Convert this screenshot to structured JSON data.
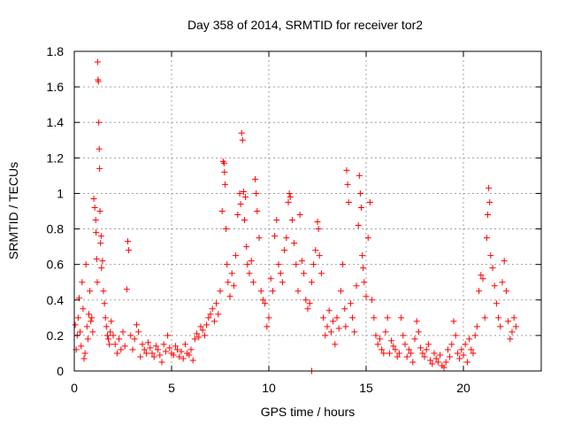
{
  "chart_data": {
    "type": "scatter",
    "title": "Day 358 of 2014, SRMTID for receiver tor2",
    "xlabel": "GPS time / hours",
    "ylabel": "SRMTID / TECUs",
    "xlim": [
      0,
      24
    ],
    "ylim": [
      0,
      1.8
    ],
    "x_ticks": [
      0,
      5,
      10,
      15,
      20
    ],
    "x_tick_labels": [
      "0",
      "5",
      "10",
      "15",
      "20"
    ],
    "y_ticks": [
      0,
      0.2,
      0.4,
      0.6,
      0.8,
      1.0,
      1.2,
      1.4,
      1.6,
      1.8
    ],
    "y_tick_labels": [
      "0",
      "0.2",
      "0.4",
      "0.6",
      "0.8",
      "1",
      "1.2",
      "1.4",
      "1.6",
      "1.8"
    ],
    "grid": true,
    "marker": "+",
    "color": "#ff0000",
    "series": [
      {
        "name": "tor2",
        "points": [
          [
            0.05,
            0.26
          ],
          [
            0.1,
            0.12
          ],
          [
            0.15,
            0.2
          ],
          [
            0.2,
            0.3
          ],
          [
            0.25,
            0.41
          ],
          [
            0.3,
            0.22
          ],
          [
            0.35,
            0.14
          ],
          [
            0.4,
            0.5
          ],
          [
            0.45,
            0.35
          ],
          [
            0.5,
            0.07
          ],
          [
            0.55,
            0.1
          ],
          [
            0.6,
            0.6
          ],
          [
            0.65,
            0.25
          ],
          [
            0.7,
            0.18
          ],
          [
            0.75,
            0.32
          ],
          [
            0.8,
            0.45
          ],
          [
            0.85,
            0.28
          ],
          [
            0.9,
            0.3
          ],
          [
            0.95,
            0.22
          ],
          [
            1.0,
            0.97
          ],
          [
            1.05,
            0.92
          ],
          [
            1.1,
            0.85
          ],
          [
            1.12,
            0.78
          ],
          [
            1.15,
            0.63
          ],
          [
            1.18,
            0.5
          ],
          [
            1.2,
            1.74
          ],
          [
            1.22,
            1.64
          ],
          [
            1.24,
            1.63
          ],
          [
            1.26,
            1.4
          ],
          [
            1.28,
            1.25
          ],
          [
            1.3,
            1.14
          ],
          [
            1.32,
            0.9
          ],
          [
            1.35,
            0.72
          ],
          [
            1.38,
            0.76
          ],
          [
            1.4,
            0.58
          ],
          [
            1.45,
            0.62
          ],
          [
            1.5,
            0.45
          ],
          [
            1.55,
            0.38
          ],
          [
            1.6,
            0.3
          ],
          [
            1.65,
            0.25
          ],
          [
            1.7,
            0.2
          ],
          [
            1.75,
            0.18
          ],
          [
            1.8,
            0.15
          ],
          [
            1.85,
            0.22
          ],
          [
            1.9,
            0.28
          ],
          [
            2.0,
            0.2
          ],
          [
            2.1,
            0.15
          ],
          [
            2.2,
            0.1
          ],
          [
            2.3,
            0.18
          ],
          [
            2.4,
            0.12
          ],
          [
            2.5,
            0.22
          ],
          [
            2.6,
            0.14
          ],
          [
            2.7,
            0.46
          ],
          [
            2.75,
            0.73
          ],
          [
            2.8,
            0.68
          ],
          [
            2.9,
            0.2
          ],
          [
            3.0,
            0.12
          ],
          [
            3.1,
            0.18
          ],
          [
            3.2,
            0.26
          ],
          [
            3.3,
            0.22
          ],
          [
            3.4,
            0.08
          ],
          [
            3.5,
            0.15
          ],
          [
            3.6,
            0.12
          ],
          [
            3.7,
            0.1
          ],
          [
            3.8,
            0.16
          ],
          [
            3.9,
            0.13
          ],
          [
            4.0,
            0.1
          ],
          [
            4.1,
            0.08
          ],
          [
            4.2,
            0.14
          ],
          [
            4.3,
            0.12
          ],
          [
            4.4,
            0.09
          ],
          [
            4.5,
            0.05
          ],
          [
            4.6,
            0.15
          ],
          [
            4.7,
            0.11
          ],
          [
            4.8,
            0.2
          ],
          [
            4.9,
            0.13
          ],
          [
            5.0,
            0.1
          ],
          [
            5.1,
            0.09
          ],
          [
            5.2,
            0.14
          ],
          [
            5.3,
            0.12
          ],
          [
            5.4,
            0.08
          ],
          [
            5.5,
            0.11
          ],
          [
            5.6,
            0.07
          ],
          [
            5.7,
            0.15
          ],
          [
            5.8,
            0.1
          ],
          [
            5.9,
            0.09
          ],
          [
            6.0,
            0.12
          ],
          [
            6.1,
            0.06
          ],
          [
            6.2,
            0.18
          ],
          [
            6.3,
            0.21
          ],
          [
            6.4,
            0.19
          ],
          [
            6.5,
            0.25
          ],
          [
            6.6,
            0.23
          ],
          [
            6.7,
            0.2
          ],
          [
            6.8,
            0.26
          ],
          [
            6.9,
            0.3
          ],
          [
            7.0,
            0.32
          ],
          [
            7.1,
            0.35
          ],
          [
            7.2,
            0.28
          ],
          [
            7.3,
            0.38
          ],
          [
            7.4,
            0.32
          ],
          [
            7.5,
            0.45
          ],
          [
            7.6,
            0.9
          ],
          [
            7.65,
            1.18
          ],
          [
            7.7,
            1.17
          ],
          [
            7.72,
            1.12
          ],
          [
            7.75,
            1.05
          ],
          [
            7.8,
            0.8
          ],
          [
            7.85,
            0.6
          ],
          [
            7.9,
            0.5
          ],
          [
            8.0,
            0.42
          ],
          [
            8.1,
            0.55
          ],
          [
            8.2,
            0.48
          ],
          [
            8.3,
            0.65
          ],
          [
            8.4,
            0.88
          ],
          [
            8.5,
            1.0
          ],
          [
            8.55,
            0.94
          ],
          [
            8.6,
            1.34
          ],
          [
            8.65,
            1.3
          ],
          [
            8.7,
            1.01
          ],
          [
            8.75,
            0.85
          ],
          [
            8.8,
            0.98
          ],
          [
            8.85,
            0.7
          ],
          [
            8.9,
            0.6
          ],
          [
            9.0,
            0.55
          ],
          [
            9.1,
            0.62
          ],
          [
            9.2,
            0.5
          ],
          [
            9.3,
            1.08
          ],
          [
            9.35,
            1.0
          ],
          [
            9.4,
            0.9
          ],
          [
            9.5,
            0.75
          ],
          [
            9.6,
            0.45
          ],
          [
            9.7,
            0.4
          ],
          [
            9.8,
            0.38
          ],
          [
            9.9,
            0.25
          ],
          [
            10.0,
            0.3
          ],
          [
            10.1,
            0.52
          ],
          [
            10.2,
            0.45
          ],
          [
            10.3,
            0.76
          ],
          [
            10.4,
            0.85
          ],
          [
            10.5,
            0.6
          ],
          [
            10.6,
            0.55
          ],
          [
            10.7,
            0.5
          ],
          [
            10.8,
            0.68
          ],
          [
            10.9,
            0.75
          ],
          [
            11.0,
            0.95
          ],
          [
            11.05,
            1.0
          ],
          [
            11.1,
            0.98
          ],
          [
            11.2,
            0.85
          ],
          [
            11.3,
            0.72
          ],
          [
            11.4,
            0.6
          ],
          [
            11.5,
            0.45
          ],
          [
            11.6,
            0.88
          ],
          [
            11.7,
            0.62
          ],
          [
            11.8,
            0.55
          ],
          [
            11.9,
            0.4
          ],
          [
            12.0,
            0.35
          ],
          [
            12.1,
            0.38
          ],
          [
            12.2,
            0.5
          ],
          [
            12.3,
            0.6
          ],
          [
            12.4,
            0.68
          ],
          [
            12.5,
            0.84
          ],
          [
            12.55,
            0.8
          ],
          [
            12.6,
            0.65
          ],
          [
            12.7,
            0.55
          ],
          [
            12.8,
            0.3
          ],
          [
            12.9,
            0.2
          ],
          [
            13.0,
            0.25
          ],
          [
            13.1,
            0.34
          ],
          [
            13.2,
            0.22
          ],
          [
            13.3,
            0.28
          ],
          [
            13.4,
            0.15
          ],
          [
            13.5,
            0.3
          ],
          [
            13.6,
            0.24
          ],
          [
            13.7,
            0.45
          ],
          [
            13.8,
            0.6
          ],
          [
            13.9,
            0.35
          ],
          [
            13.95,
            0.25
          ],
          [
            14.0,
            1.13
          ],
          [
            14.05,
            1.05
          ],
          [
            14.1,
            0.95
          ],
          [
            14.2,
            0.38
          ],
          [
            14.3,
            0.3
          ],
          [
            14.4,
            0.22
          ],
          [
            14.5,
            0.48
          ],
          [
            14.6,
            0.82
          ],
          [
            14.65,
            1.1
          ],
          [
            14.7,
            1.0
          ],
          [
            14.75,
            0.92
          ],
          [
            14.8,
            0.65
          ],
          [
            14.85,
            0.58
          ],
          [
            14.9,
            0.5
          ],
          [
            15.0,
            0.42
          ],
          [
            15.1,
            0.75
          ],
          [
            15.2,
            0.95
          ],
          [
            15.3,
            0.4
          ],
          [
            15.4,
            0.3
          ],
          [
            15.5,
            0.2
          ],
          [
            15.6,
            0.15
          ],
          [
            15.7,
            0.18
          ],
          [
            15.8,
            0.12
          ],
          [
            15.9,
            0.1
          ],
          [
            16.0,
            0.22
          ],
          [
            16.1,
            0.3
          ],
          [
            16.2,
            0.1
          ],
          [
            16.3,
            0.17
          ],
          [
            16.4,
            0.14
          ],
          [
            16.5,
            0.12
          ],
          [
            16.6,
            0.08
          ],
          [
            16.7,
            0.1
          ],
          [
            16.8,
            0.3
          ],
          [
            16.9,
            0.2
          ],
          [
            17.0,
            0.15
          ],
          [
            17.1,
            0.08
          ],
          [
            17.2,
            0.12
          ],
          [
            17.3,
            0.1
          ],
          [
            17.4,
            0.05
          ],
          [
            17.5,
            0.18
          ],
          [
            17.6,
            0.28
          ],
          [
            17.7,
            0.22
          ],
          [
            17.8,
            0.13
          ],
          [
            17.9,
            0.1
          ],
          [
            18.0,
            0.08
          ],
          [
            18.1,
            0.12
          ],
          [
            18.2,
            0.15
          ],
          [
            18.3,
            0.06
          ],
          [
            18.4,
            0.04
          ],
          [
            18.5,
            0.1
          ],
          [
            18.6,
            0.07
          ],
          [
            18.7,
            0.05
          ],
          [
            18.8,
            0.09
          ],
          [
            18.9,
            0.03
          ],
          [
            19.0,
            0.02
          ],
          [
            19.1,
            0.05
          ],
          [
            19.2,
            0.12
          ],
          [
            19.3,
            0.08
          ],
          [
            19.4,
            0.15
          ],
          [
            19.5,
            0.28
          ],
          [
            19.6,
            0.2
          ],
          [
            19.7,
            0.1
          ],
          [
            19.8,
            0.07
          ],
          [
            19.9,
            0.12
          ],
          [
            20.0,
            0.09
          ],
          [
            20.1,
            0.15
          ],
          [
            20.2,
            0.05
          ],
          [
            20.3,
            0.18
          ],
          [
            20.4,
            0.12
          ],
          [
            20.5,
            0.1
          ],
          [
            20.6,
            0.2
          ],
          [
            20.7,
            0.25
          ],
          [
            20.8,
            0.45
          ],
          [
            20.9,
            0.54
          ],
          [
            21.0,
            0.52
          ],
          [
            21.1,
            0.3
          ],
          [
            21.2,
            0.75
          ],
          [
            21.25,
            0.88
          ],
          [
            21.3,
            1.03
          ],
          [
            21.35,
            0.95
          ],
          [
            21.4,
            0.65
          ],
          [
            21.5,
            0.58
          ],
          [
            21.6,
            0.48
          ],
          [
            21.7,
            0.38
          ],
          [
            21.8,
            0.3
          ],
          [
            21.9,
            0.25
          ],
          [
            22.0,
            0.5
          ],
          [
            22.1,
            0.62
          ],
          [
            22.2,
            0.45
          ],
          [
            22.3,
            0.28
          ],
          [
            22.4,
            0.18
          ],
          [
            22.5,
            0.22
          ],
          [
            22.6,
            0.3
          ],
          [
            22.7,
            0.25
          ],
          [
            12.2,
            0.0
          ]
        ]
      }
    ]
  }
}
